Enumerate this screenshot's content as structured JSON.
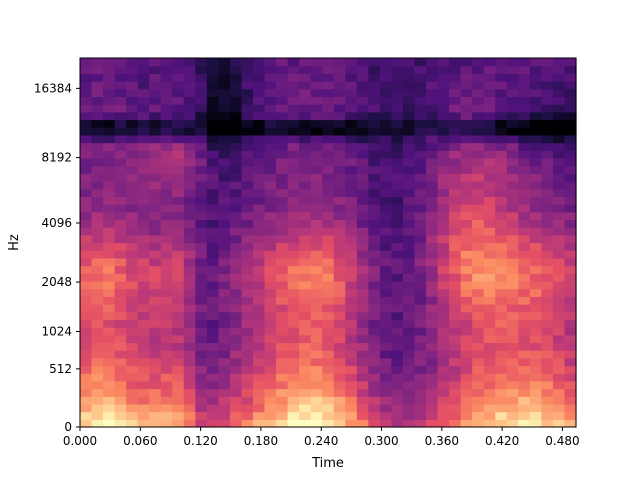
{
  "chart_data": {
    "type": "heatmap",
    "title": "",
    "xlabel": "Time",
    "ylabel": "Hz",
    "x_ticks": [
      "0.000",
      "0.060",
      "0.120",
      "0.180",
      "0.240",
      "0.300",
      "0.360",
      "0.420",
      "0.480"
    ],
    "x_tick_values": [
      0.0,
      0.06,
      0.12,
      0.18,
      0.24,
      0.3,
      0.36,
      0.42,
      0.48
    ],
    "xlim": [
      0,
      0.4935
    ],
    "y_ticks": [
      "0",
      "512",
      "1024",
      "2048",
      "4096",
      "8192",
      "16384"
    ],
    "y_tick_values": [
      0,
      512,
      1024,
      2048,
      4096,
      8192,
      16384
    ],
    "y_scale": "mel",
    "ylim": [
      0,
      22050
    ],
    "colormap": "magma",
    "grid": false,
    "legend": "none",
    "value_range": [
      -80,
      0
    ],
    "time_bins": 43,
    "freq_bins": 48,
    "colors": {
      "magma_stops": [
        "#000004",
        "#1c1044",
        "#4f127b",
        "#812581",
        "#b5367a",
        "#e55064",
        "#fb8861",
        "#fec287",
        "#fcfdbf"
      ],
      "axis": "#000000",
      "background": "#ffffff"
    }
  }
}
